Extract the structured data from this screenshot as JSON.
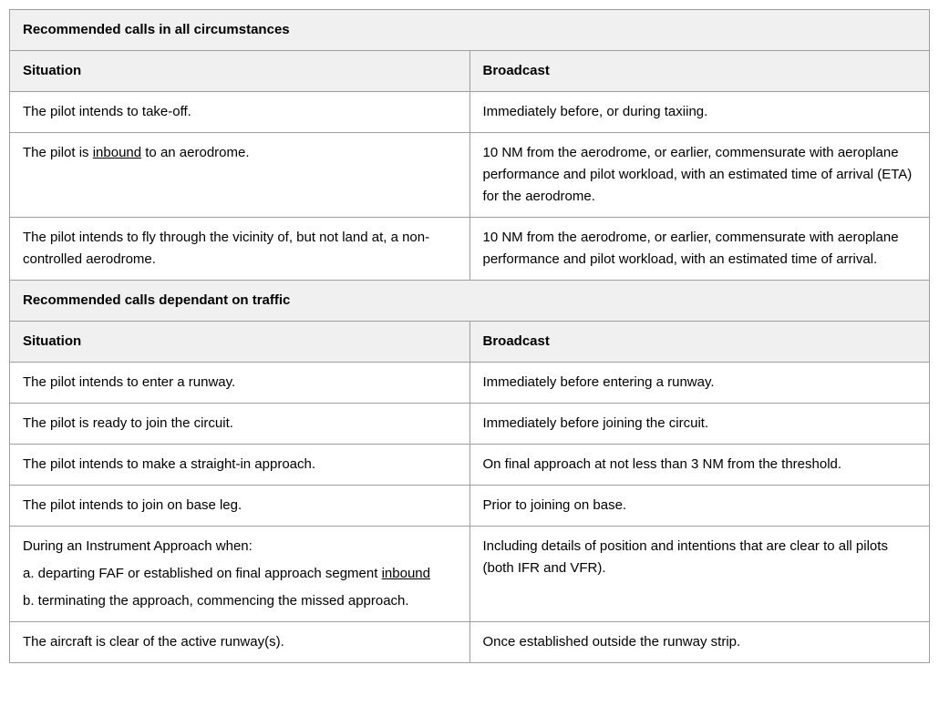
{
  "colors": {
    "border": "#9e9e9e",
    "header_bg": "#f0f0f0",
    "text": "#000000",
    "background": "#ffffff"
  },
  "typography": {
    "font_family": "Arial, Helvetica, sans-serif",
    "font_size_pt": 11,
    "line_height": 1.6,
    "header_weight": "bold"
  },
  "columns": {
    "situation": "Situation",
    "broadcast": "Broadcast",
    "widths_pct": [
      50,
      50
    ]
  },
  "sections": [
    {
      "title": "Recommended calls in all circumstances",
      "rows": [
        {
          "situation_parts": [
            {
              "t": "The pilot intends to take-off."
            }
          ],
          "broadcast": "Immediately before, or during taxiing."
        },
        {
          "situation_parts": [
            {
              "t": "The pilot is "
            },
            {
              "t": "inbound",
              "underline": true
            },
            {
              "t": " to an aerodrome."
            }
          ],
          "broadcast": "10 NM from the aerodrome, or earlier, commensurate with aeroplane performance and pilot workload, with an estimated time of arrival (ETA) for the aerodrome."
        },
        {
          "situation_parts": [
            {
              "t": "The pilot intends to fly through the vicinity of, but not land at, a non-controlled aerodrome."
            }
          ],
          "broadcast": "10 NM from the aerodrome, or earlier, commensurate with aeroplane performance and pilot workload, with an estimated time of arrival."
        }
      ]
    },
    {
      "title": "Recommended calls dependant on traffic",
      "rows": [
        {
          "situation_parts": [
            {
              "t": "The pilot intends to enter a runway."
            }
          ],
          "broadcast": "Immediately before entering a runway."
        },
        {
          "situation_parts": [
            {
              "t": "The pilot is ready to join the circuit."
            }
          ],
          "broadcast": "Immediately before joining the circuit."
        },
        {
          "situation_parts": [
            {
              "t": "The pilot intends to make a straight-in approach."
            }
          ],
          "broadcast": "On final approach at not less than 3 NM from the threshold."
        },
        {
          "situation_parts": [
            {
              "t": "The pilot intends to join on base leg."
            }
          ],
          "broadcast": "Prior to joining on base."
        },
        {
          "situation_multiline": [
            [
              {
                "t": "During an Instrument Approach when:"
              }
            ],
            [
              {
                "t": "a. departing FAF or established on final approach segment "
              },
              {
                "t": "inbound",
                "underline": true
              }
            ],
            [
              {
                "t": "b. terminating the approach, commencing the missed approach."
              }
            ]
          ],
          "broadcast": "Including details of position and intentions that are clear to all pilots (both IFR and VFR)."
        },
        {
          "situation_parts": [
            {
              "t": "The aircraft is clear of the active runway(s)."
            }
          ],
          "broadcast": "Once established outside the runway strip."
        }
      ]
    }
  ]
}
